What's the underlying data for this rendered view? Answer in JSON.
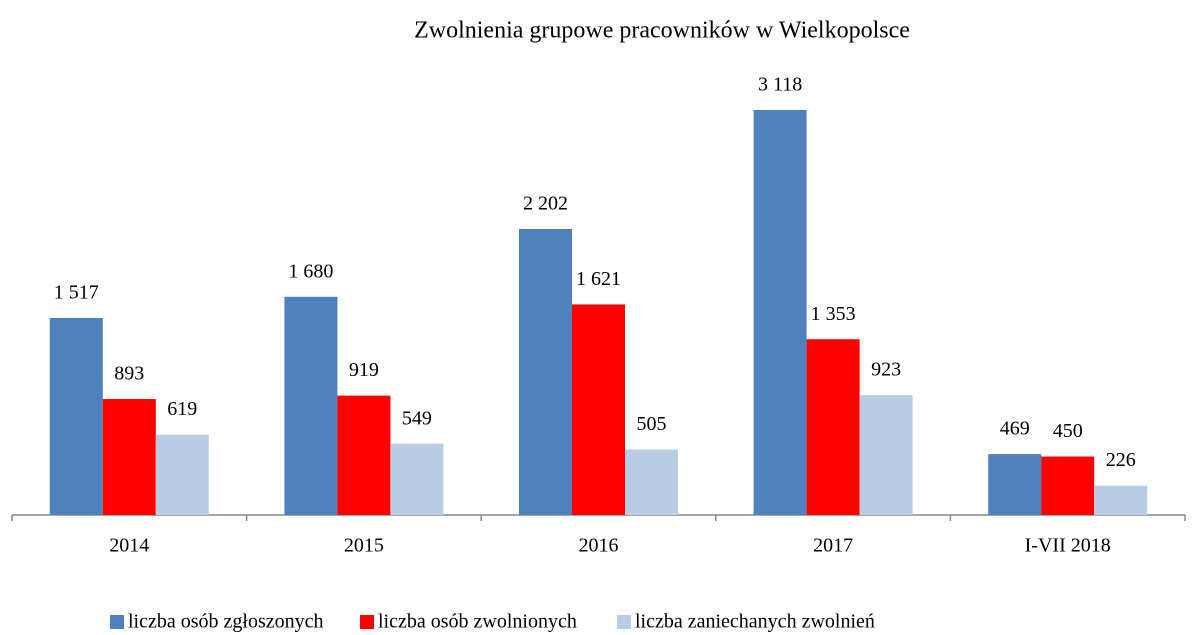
{
  "chart_data": {
    "type": "bar",
    "title": "Zwolnienia grupowe pracowników w Wielkopolsce",
    "categories": [
      "2014",
      "2015",
      "2016",
      "2017",
      "I-VII 2018"
    ],
    "series": [
      {
        "name": "liczba osób zgłoszonych",
        "color": "#4f81bd",
        "values": [
          1517,
          1680,
          2202,
          3118,
          469
        ],
        "value_labels": [
          "1 517",
          "1 680",
          "2 202",
          "3 118",
          "469"
        ]
      },
      {
        "name": "liczba osób zwolnionych",
        "color": "#ff0000",
        "values": [
          893,
          919,
          1621,
          1353,
          450
        ],
        "value_labels": [
          "893",
          "919",
          "1 621",
          "1 353",
          "450"
        ]
      },
      {
        "name": "liczba zaniechanych zwolnień",
        "color": "#b9cde5",
        "values": [
          619,
          549,
          505,
          923,
          226
        ],
        "value_labels": [
          "619",
          "549",
          "505",
          "923",
          "226"
        ]
      }
    ],
    "legend": "bottom"
  }
}
